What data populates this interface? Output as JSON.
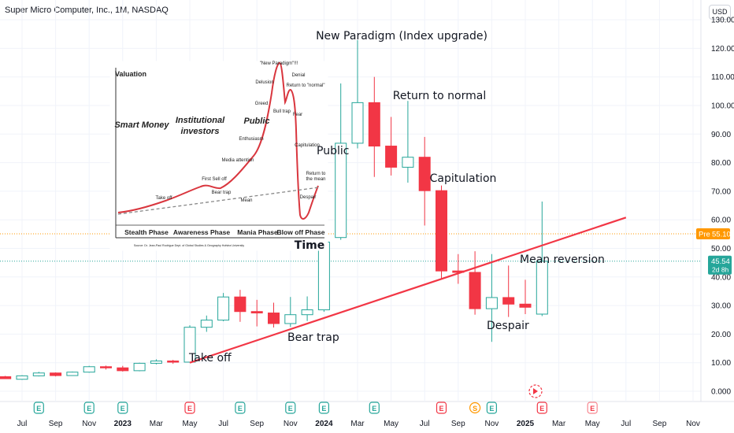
{
  "header": {
    "title": "Super Micro Computer, Inc., 1M, NASDAQ",
    "currency_button": "USD"
  },
  "colors": {
    "up": "#26a69a",
    "down": "#f23645",
    "trendline": "#f23645",
    "pre_line": "#ff9800",
    "last_line": "#26a69a"
  },
  "chart_data": {
    "type": "candlestick",
    "title": "",
    "interval": "1M",
    "ylim": [
      0,
      130
    ],
    "y_ticks": [
      "0.000",
      "10.00",
      "20.00",
      "30.00",
      "40.00",
      "50.00",
      "60.00",
      "70.00",
      "80.00",
      "90.00",
      "100.00",
      "110.00",
      "120.00",
      "130.00"
    ],
    "x_tick_labels": [
      "Jul",
      "Sep",
      "Nov",
      "2023",
      "Mar",
      "May",
      "Jul",
      "Sep",
      "Nov",
      "2024",
      "Mar",
      "May",
      "Jul",
      "Sep",
      "Nov",
      "2025",
      "Mar",
      "May",
      "Jul",
      "Sep",
      "Nov"
    ],
    "candles": [
      {
        "date": "2022-06",
        "open": 5.1,
        "high": 5.4,
        "low": 4.3,
        "close": 4.4
      },
      {
        "date": "2022-07",
        "open": 4.2,
        "high": 5.6,
        "low": 4.0,
        "close": 5.4
      },
      {
        "date": "2022-08",
        "open": 5.4,
        "high": 6.8,
        "low": 5.2,
        "close": 6.4
      },
      {
        "date": "2022-09",
        "open": 6.4,
        "high": 6.6,
        "low": 5.2,
        "close": 5.5
      },
      {
        "date": "2022-10",
        "open": 5.5,
        "high": 6.9,
        "low": 5.4,
        "close": 6.7
      },
      {
        "date": "2022-11",
        "open": 6.7,
        "high": 8.9,
        "low": 6.5,
        "close": 8.6
      },
      {
        "date": "2022-12",
        "open": 8.6,
        "high": 9.0,
        "low": 7.6,
        "close": 8.2
      },
      {
        "date": "2023-01",
        "open": 8.2,
        "high": 8.9,
        "low": 6.9,
        "close": 7.2
      },
      {
        "date": "2023-02",
        "open": 7.2,
        "high": 10.0,
        "low": 7.0,
        "close": 9.8
      },
      {
        "date": "2023-03",
        "open": 9.8,
        "high": 11.2,
        "low": 9.4,
        "close": 10.6
      },
      {
        "date": "2023-04",
        "open": 10.6,
        "high": 11.0,
        "low": 9.6,
        "close": 10.2
      },
      {
        "date": "2023-05",
        "open": 10.2,
        "high": 23.1,
        "low": 10.0,
        "close": 22.4
      },
      {
        "date": "2023-06",
        "open": 22.4,
        "high": 26.5,
        "low": 20.8,
        "close": 24.9
      },
      {
        "date": "2023-07",
        "open": 24.9,
        "high": 34.4,
        "low": 24.5,
        "close": 33.0
      },
      {
        "date": "2023-08",
        "open": 33.0,
        "high": 35.5,
        "low": 24.3,
        "close": 27.9
      },
      {
        "date": "2023-09",
        "open": 27.9,
        "high": 32.0,
        "low": 22.7,
        "close": 27.4
      },
      {
        "date": "2023-10",
        "open": 27.4,
        "high": 31.0,
        "low": 22.3,
        "close": 23.7
      },
      {
        "date": "2023-11",
        "open": 23.7,
        "high": 33.0,
        "low": 22.5,
        "close": 26.8
      },
      {
        "date": "2023-12",
        "open": 26.8,
        "high": 33.2,
        "low": 24.6,
        "close": 28.5
      },
      {
        "date": "2024-01",
        "open": 28.5,
        "high": 52.7,
        "low": 27.8,
        "close": 52.2
      },
      {
        "date": "2024-02",
        "open": 53.8,
        "high": 107.7,
        "low": 53.0,
        "close": 86.8
      },
      {
        "date": "2024-03",
        "open": 86.8,
        "high": 122.9,
        "low": 85.0,
        "close": 101.0
      },
      {
        "date": "2024-04",
        "open": 101.0,
        "high": 110.0,
        "low": 75.0,
        "close": 85.8
      },
      {
        "date": "2024-05",
        "open": 85.8,
        "high": 96.0,
        "low": 75.5,
        "close": 78.4
      },
      {
        "date": "2024-06",
        "open": 78.4,
        "high": 101.6,
        "low": 73.0,
        "close": 81.9
      },
      {
        "date": "2024-07",
        "open": 81.9,
        "high": 89.0,
        "low": 58.0,
        "close": 70.2
      },
      {
        "date": "2024-08",
        "open": 70.2,
        "high": 72.0,
        "low": 39.2,
        "close": 42.1
      },
      {
        "date": "2024-09",
        "open": 42.1,
        "high": 48.0,
        "low": 37.6,
        "close": 41.6
      },
      {
        "date": "2024-10",
        "open": 41.6,
        "high": 49.0,
        "low": 26.8,
        "close": 28.9
      },
      {
        "date": "2024-11",
        "open": 28.9,
        "high": 48.0,
        "low": 17.3,
        "close": 32.8
      },
      {
        "date": "2024-12",
        "open": 32.8,
        "high": 44.0,
        "low": 26.0,
        "close": 30.5
      },
      {
        "date": "2025-01",
        "open": 30.5,
        "high": 39.0,
        "low": 27.0,
        "close": 29.4
      },
      {
        "date": "2025-02",
        "open": 27.0,
        "high": 66.4,
        "low": 26.3,
        "close": 45.5
      }
    ],
    "trendline": {
      "start": {
        "date": "2023-05",
        "value": 10.0
      },
      "end": {
        "date": "2025-07",
        "value": 60.8
      }
    },
    "price_labels": {
      "pre": {
        "label": "Pre",
        "value": "55.10"
      },
      "last": {
        "value": "45.54",
        "countdown": "2d 8h"
      }
    },
    "annotations": [
      "New Paradigm (Index upgrade)",
      "Return to normal",
      "Public",
      "Capitulation",
      "Mean reversion",
      "Despair",
      "Bear trap",
      "Take off"
    ],
    "event_markers": [
      {
        "date": "2022-08",
        "type": "E"
      },
      {
        "date": "2022-11",
        "type": "E"
      },
      {
        "date": "2023-01",
        "type": "E"
      },
      {
        "date": "2023-05",
        "type": "E"
      },
      {
        "date": "2023-08",
        "type": "E"
      },
      {
        "date": "2023-11",
        "type": "E"
      },
      {
        "date": "2024-01",
        "type": "E"
      },
      {
        "date": "2024-04",
        "type": "E"
      },
      {
        "date": "2024-08",
        "type": "E"
      },
      {
        "date": "2024-10",
        "type": "S"
      },
      {
        "date": "2024-11",
        "type": "E"
      },
      {
        "date": "2025-02",
        "type": "E"
      },
      {
        "date": "2025-05",
        "type": "E"
      }
    ]
  },
  "inset": {
    "ylabel": "Valuation",
    "xlabel": "Time",
    "phase_labels": [
      "Stealth Phase",
      "Awareness Phase",
      "Mania Phase",
      "Blow off Phase"
    ],
    "big_labels": [
      "Smart Money",
      "Institutional investors",
      "Public"
    ],
    "stage_labels": [
      "\"New Paradigm\"!!!",
      "Delusion",
      "Denial",
      "Return to \"normal\"",
      "Greed",
      "Bull trap",
      "Fear",
      "Enthusiasm",
      "Capitulation",
      "Media attention",
      "First Sell off",
      "Return to the mean",
      "Bear trap",
      "Take off",
      "Despair",
      "Mean"
    ],
    "source": "Source: Dr. Jean-Paul Rodrigue Dept. of Global Studies & Geography Hofstra University"
  }
}
